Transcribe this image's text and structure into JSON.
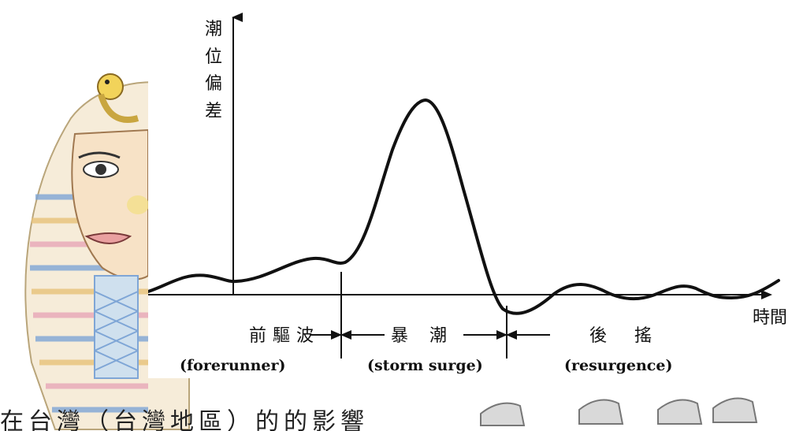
{
  "axis": {
    "y_label_chars": [
      "潮",
      "位",
      "偏",
      "差"
    ],
    "x_label": "時間"
  },
  "phases": [
    {
      "zh": "前驅波",
      "en": "(forerunner)"
    },
    {
      "zh": "暴 潮",
      "en": "(storm surge)"
    },
    {
      "zh": "後 搖",
      "en": "(resurgence)"
    }
  ],
  "colors": {
    "line": "#111111",
    "bg_face": "#f3dcc0",
    "bg_stripe_blue": "#7fa6d6",
    "bg_stripe_gold": "#e8c27a",
    "bg_stripe_pink": "#e8a7b8"
  },
  "caption": {
    "visible_fragment": "在台灣（台灣地區）的的影響"
  }
}
